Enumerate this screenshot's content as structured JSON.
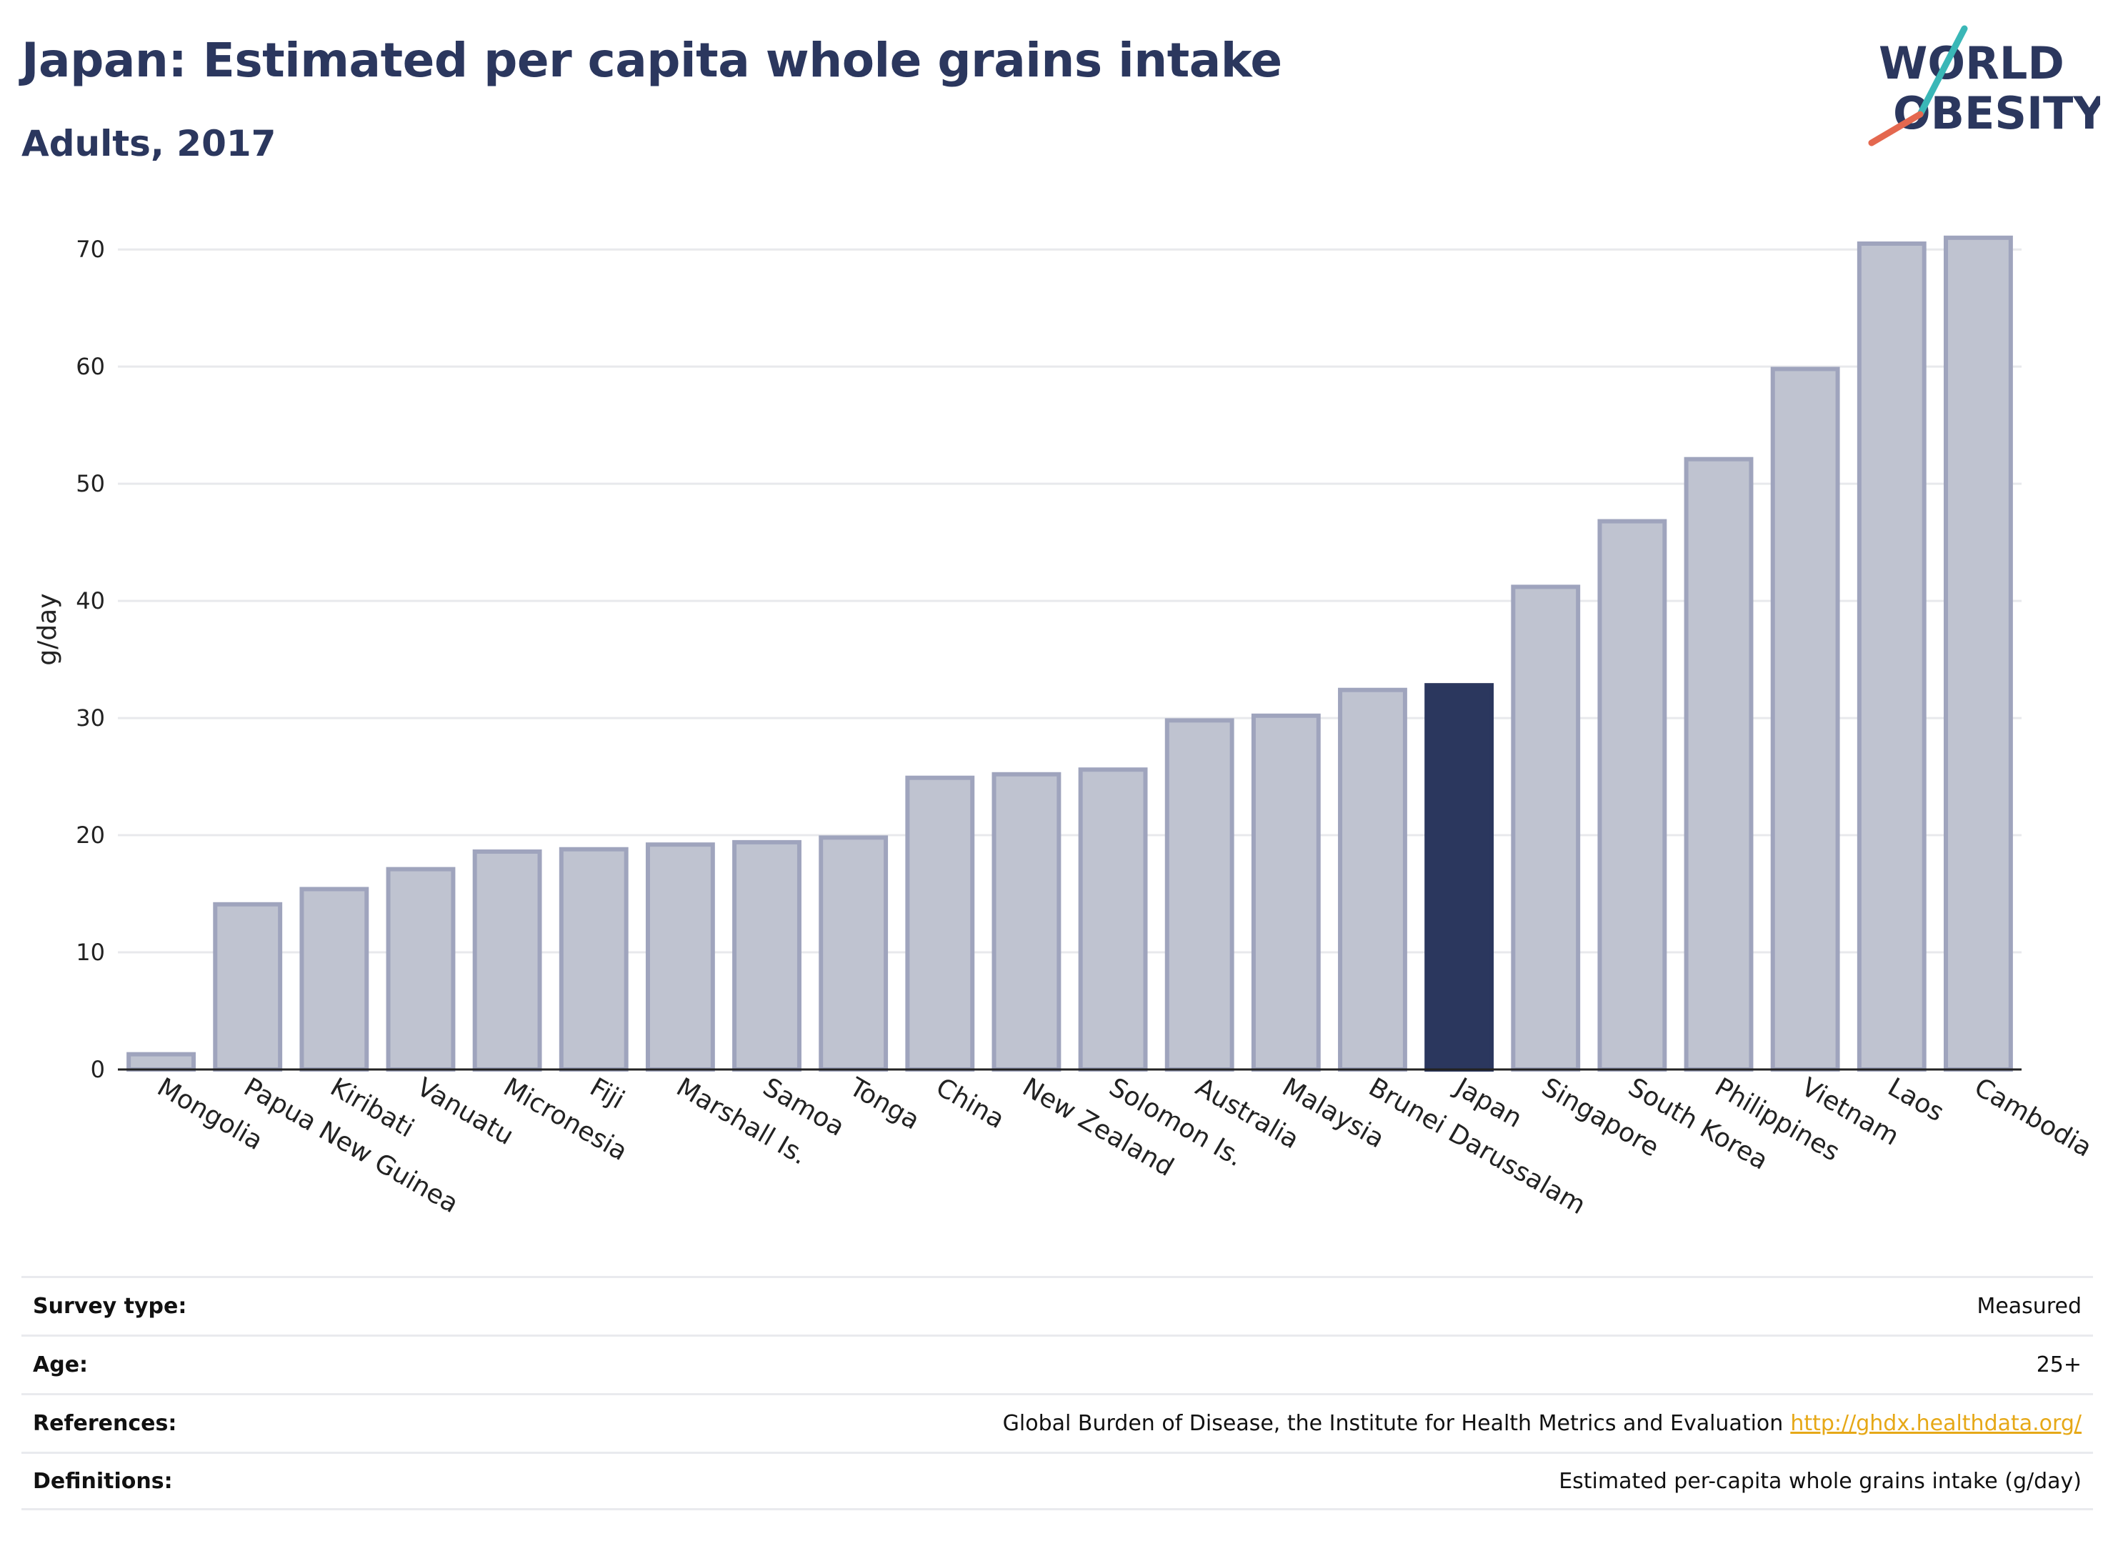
{
  "header": {
    "title": "Japan: Estimated per capita whole grains intake",
    "subtitle": "Adults, 2017"
  },
  "logo": {
    "line1": "WORLD",
    "line2": "OBESITY",
    "text_color": "#2b375e",
    "slash_colors": [
      "#e4684f",
      "#3ab7b7"
    ]
  },
  "chart_data": {
    "type": "bar",
    "ylabel": "g/day",
    "xlabel": "",
    "ylim": [
      0,
      73
    ],
    "yticks": [
      0,
      10,
      20,
      30,
      40,
      50,
      60,
      70
    ],
    "grid": true,
    "highlight": "Japan",
    "colors": {
      "bar": "#bfc3d0",
      "bar_border": "#9fa4bd",
      "highlight": "#2b375e",
      "grid": "#e8e9ec"
    },
    "categories": [
      "Mongolia",
      "Papua New Guinea",
      "Kiribati",
      "Vanuatu",
      "Micronesia",
      "Fiji",
      "Marshall Is.",
      "Samoa",
      "Tonga",
      "China",
      "New Zealand",
      "Solomon Is.",
      "Australia",
      "Malaysia",
      "Brunei Darussalam",
      "Japan",
      "Singapore",
      "South Korea",
      "Philippines",
      "Vietnam",
      "Laos",
      "Cambodia"
    ],
    "values": [
      1.3,
      14.1,
      15.4,
      17.1,
      18.6,
      18.8,
      19.2,
      19.4,
      19.8,
      24.9,
      25.2,
      25.6,
      29.8,
      30.2,
      32.4,
      32.8,
      41.2,
      46.8,
      52.1,
      59.8,
      70.5,
      71.0
    ]
  },
  "meta": {
    "rows": [
      {
        "label": "Survey type:",
        "value": "Measured"
      },
      {
        "label": "Age:",
        "value": "25+"
      },
      {
        "label": "References:",
        "value": "Global Burden of Disease, the Institute for Health Metrics and Evaluation",
        "link": "http://ghdx.healthdata.org/"
      },
      {
        "label": "Definitions:",
        "value": "Estimated per-capita whole grains intake (g/day)"
      }
    ],
    "link_color": "#e6a817"
  }
}
